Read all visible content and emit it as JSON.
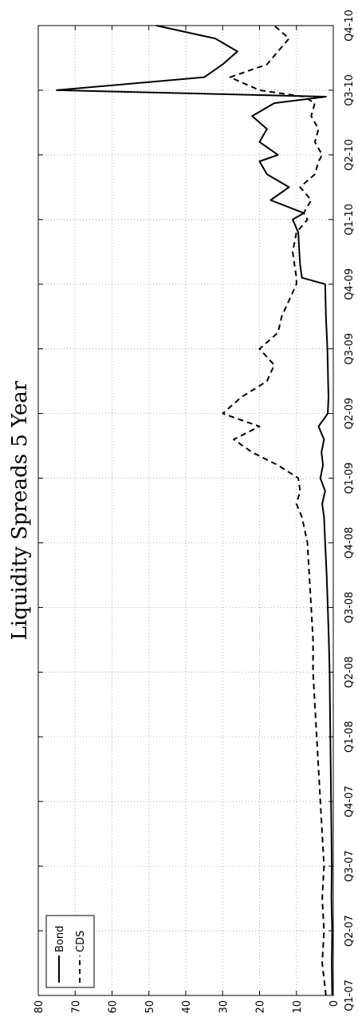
{
  "chart_data": {
    "type": "line",
    "title": "Liquidity Spreads 5 Year",
    "xlabel": "",
    "ylabel": "",
    "orientation": "rotated-90-ccw",
    "grid": true,
    "legend_position": "top-left",
    "ylim": [
      0,
      80
    ],
    "yticks": [
      "0",
      "10",
      "20",
      "30",
      "40",
      "50",
      "60",
      "70",
      "80"
    ],
    "xticks": [
      "Q1-07",
      "Q2-07",
      "Q3-07",
      "Q4-07",
      "Q1-08",
      "Q2-08",
      "Q3-08",
      "Q4-08",
      "Q1-09",
      "Q2-09",
      "Q3-09",
      "Q4-09",
      "Q1-10",
      "Q2-10",
      "Q3-10",
      "Q4-10"
    ],
    "x": [
      0,
      0.5,
      1,
      1.5,
      2,
      2.5,
      3,
      3.5,
      4,
      4.5,
      5,
      5.5,
      6,
      6.5,
      7,
      7.4,
      7.6,
      7.8,
      8,
      8.2,
      8.4,
      8.6,
      8.8,
      9,
      9.25,
      9.5,
      9.75,
      10,
      10.25,
      10.5,
      10.75,
      11,
      11.1,
      11.3,
      11.5,
      11.8,
      12,
      12.1,
      12.3,
      12.5,
      12.7,
      12.9,
      13,
      13.2,
      13.4,
      13.6,
      13.8,
      13.9,
      14,
      14.2,
      14.4,
      14.6,
      14.8,
      15
    ],
    "series": [
      {
        "name": "Bond",
        "style": "solid",
        "values": [
          0.3,
          0.4,
          0.3,
          0.5,
          0.4,
          0.5,
          0.6,
          0.7,
          0.8,
          0.9,
          1.0,
          1.2,
          1.5,
          1.8,
          2.2,
          2.5,
          3.0,
          2.2,
          3.5,
          2.8,
          3.2,
          2.5,
          4.0,
          1.5,
          1.3,
          1.4,
          1.5,
          1.6,
          1.8,
          2.0,
          2.1,
          2.2,
          8.5,
          9.0,
          9.2,
          9.5,
          11,
          8,
          17,
          12,
          18,
          20,
          15,
          20,
          18,
          22,
          16,
          2,
          75,
          35,
          30,
          26,
          32,
          48
        ]
      },
      {
        "name": "CDS",
        "style": "dashed",
        "values": [
          2.0,
          3.0,
          2.5,
          3.0,
          2.5,
          3.0,
          3.5,
          4.0,
          4.5,
          5.0,
          5.5,
          5.5,
          6.0,
          6.5,
          7.0,
          8.5,
          10.0,
          9.0,
          9.5,
          15,
          22,
          27,
          20,
          30,
          25,
          18,
          16,
          20,
          15,
          14,
          12,
          10,
          10,
          10.5,
          11,
          10,
          7,
          8,
          6,
          9,
          5,
          4,
          3,
          5,
          4,
          6,
          5,
          8,
          20,
          28,
          18,
          15,
          12,
          16
        ]
      }
    ]
  }
}
